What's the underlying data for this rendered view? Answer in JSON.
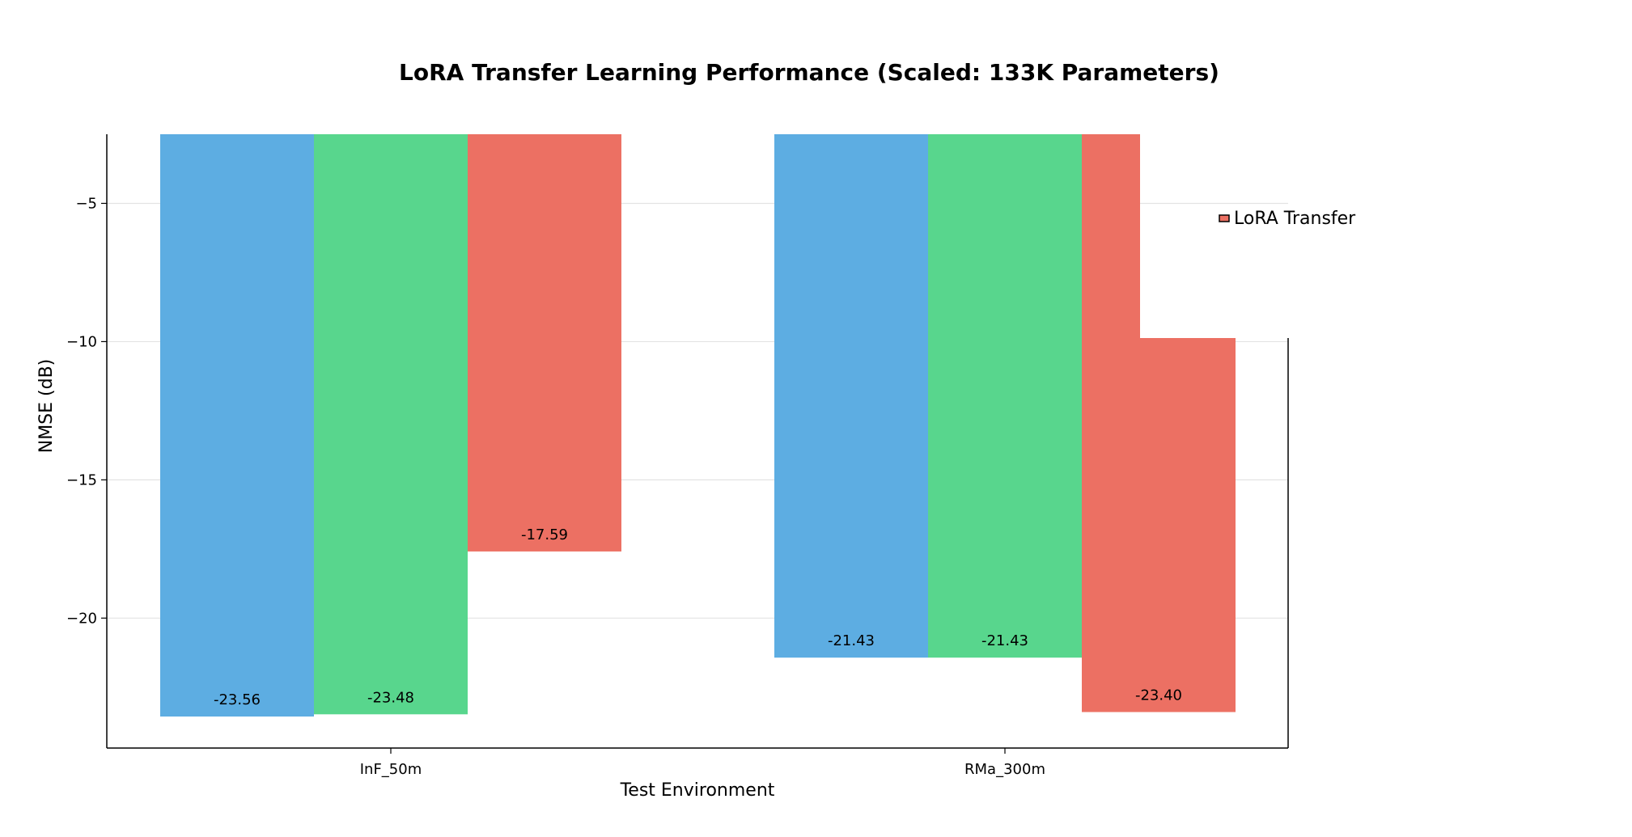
{
  "chart_data": {
    "type": "bar",
    "title": "LoRA Transfer Learning Performance (Scaled: 133K Parameters)",
    "xlabel": "Test Environment",
    "ylabel": "NMSE (dB)",
    "categories": [
      "InF_50m",
      "RMa_300m"
    ],
    "series": [
      {
        "values": [
          -23.56,
          -21.43
        ],
        "color": "#5dade2"
      },
      {
        "values": [
          -23.48,
          -21.43
        ],
        "color": "#58d68d"
      },
      {
        "name": "LoRA Transfer",
        "values": [
          -17.59,
          -23.4
        ],
        "color": "#ec7063"
      }
    ],
    "data_labels": [
      [
        "-23.56",
        "-21.43"
      ],
      [
        "-23.48",
        "-21.43"
      ],
      [
        "-17.59",
        "-23.40"
      ]
    ],
    "ylim": [
      -24.7,
      -2.5
    ],
    "yticks": [
      -5,
      -10,
      -15,
      -20
    ],
    "ytick_labels": [
      "−5",
      "−10",
      "−15",
      "−20"
    ],
    "grid": true,
    "legend_position": "upper-right",
    "legend_entries": [
      "LoRA Transfer"
    ],
    "legend_colors": [
      "#ec7063"
    ]
  }
}
